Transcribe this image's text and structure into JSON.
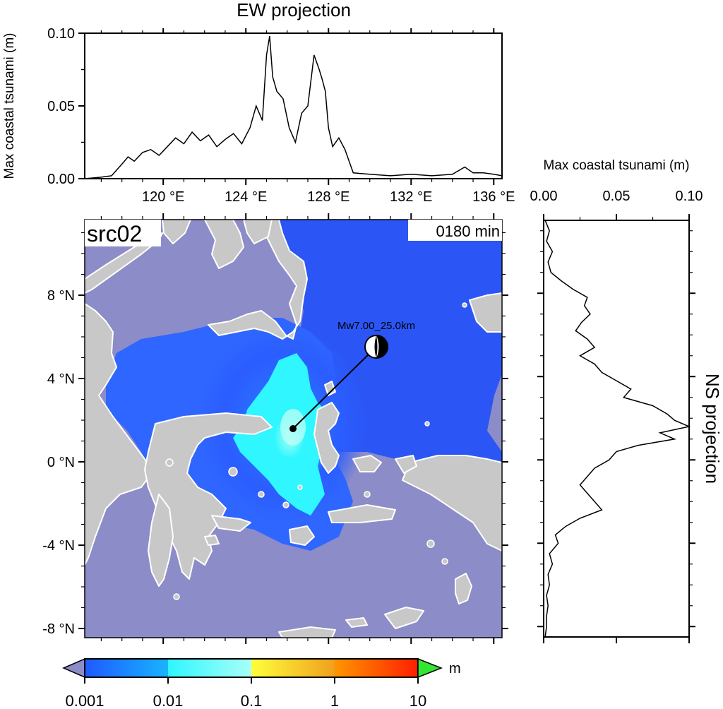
{
  "ew_panel": {
    "title": "EW projection",
    "ylabel": "Max coastal tsunami (m)",
    "y_ticks": [
      "0.00",
      "0.05",
      "0.10"
    ],
    "x_ticks": [
      "120 °E",
      "124 °E",
      "128 °E",
      "132 °E",
      "136 °E"
    ]
  },
  "ns_panel": {
    "title": "NS projection",
    "xlabel": "Max coastal tsunami (m)",
    "x_ticks": [
      "0.00",
      "0.05",
      "0.10"
    ]
  },
  "map": {
    "source_label": "src02",
    "time_label": "0180 min",
    "event_label": "Mw7.00_25.0km",
    "lat_ticks": [
      "8 °N",
      "4 °N",
      "0 °N",
      "-4 °N",
      "-8 °N"
    ],
    "colors": {
      "deep": "#8c8cc8",
      "land": "#c8c8c8",
      "coast": "#ffffff",
      "wave_low": "#2f6bff",
      "wave_mid": "#2ff6ff",
      "wave_high": "#a8fff4"
    }
  },
  "colorbar": {
    "unit": "m",
    "tick_labels": [
      "0.001",
      "0.01",
      "0.1",
      "1",
      "10"
    ],
    "colors": [
      "#1e64ff",
      "#2ff6ff",
      "#ffff3c",
      "#ff3c00",
      "#32e632"
    ]
  },
  "chart_data": [
    {
      "type": "line",
      "title": "EW projection",
      "xlabel": "",
      "ylabel": "Max coastal tsunami (m)",
      "xlim": [
        116.2,
        136.4
      ],
      "ylim": [
        0,
        0.1
      ],
      "x": [
        116.2,
        117.0,
        117.5,
        118.0,
        118.3,
        118.6,
        119.0,
        119.4,
        119.8,
        120.2,
        120.6,
        121.0,
        121.4,
        121.8,
        122.2,
        122.6,
        123.0,
        123.4,
        123.8,
        124.2,
        124.5,
        124.8,
        125.0,
        125.15,
        125.3,
        125.5,
        125.8,
        126.1,
        126.4,
        126.7,
        127.0,
        127.3,
        127.55,
        127.7,
        127.85,
        128.0,
        128.2,
        128.5,
        128.8,
        129.2,
        130.0,
        131.0,
        132.0,
        133.0,
        134.0,
        134.6,
        135.0,
        135.5,
        136.0,
        136.4
      ],
      "y": [
        0.0,
        0.001,
        0.002,
        0.01,
        0.015,
        0.012,
        0.018,
        0.02,
        0.016,
        0.022,
        0.028,
        0.024,
        0.032,
        0.026,
        0.03,
        0.022,
        0.027,
        0.031,
        0.024,
        0.035,
        0.05,
        0.04,
        0.085,
        0.098,
        0.07,
        0.06,
        0.055,
        0.035,
        0.025,
        0.045,
        0.05,
        0.085,
        0.075,
        0.068,
        0.06,
        0.035,
        0.022,
        0.028,
        0.02,
        0.004,
        0.003,
        0.002,
        0.003,
        0.002,
        0.003,
        0.008,
        0.004,
        0.004,
        0.003,
        0.002
      ]
    },
    {
      "type": "line",
      "title": "NS projection",
      "xlabel": "Max coastal tsunami (m)",
      "ylabel": "",
      "xlim": [
        0,
        0.1
      ],
      "ylim": [
        -8.5,
        11.5
      ],
      "y": [
        11.5,
        11.0,
        10.5,
        10.0,
        9.5,
        9.0,
        8.6,
        8.2,
        7.8,
        7.4,
        7.0,
        6.6,
        6.2,
        5.8,
        5.4,
        5.0,
        4.6,
        4.2,
        3.8,
        3.4,
        3.0,
        2.6,
        2.2,
        1.9,
        1.6,
        1.3,
        1.0,
        0.7,
        0.4,
        0.0,
        -0.4,
        -0.8,
        -1.2,
        -1.6,
        -2.0,
        -2.4,
        -2.8,
        -3.2,
        -3.6,
        -4.0,
        -4.5,
        -5.0,
        -5.5,
        -6.0,
        -6.5,
        -7.0,
        -7.5,
        -8.0,
        -8.5
      ],
      "x": [
        0.001,
        0.004,
        0.002,
        0.006,
        0.003,
        0.005,
        0.012,
        0.02,
        0.03,
        0.028,
        0.032,
        0.026,
        0.022,
        0.03,
        0.035,
        0.025,
        0.035,
        0.04,
        0.05,
        0.06,
        0.055,
        0.075,
        0.085,
        0.09,
        0.1,
        0.08,
        0.09,
        0.065,
        0.05,
        0.045,
        0.035,
        0.03,
        0.025,
        0.03,
        0.035,
        0.04,
        0.025,
        0.015,
        0.008,
        0.01,
        0.004,
        0.006,
        0.003,
        0.004,
        0.002,
        0.003,
        0.002,
        0.002,
        0.001
      ]
    }
  ]
}
